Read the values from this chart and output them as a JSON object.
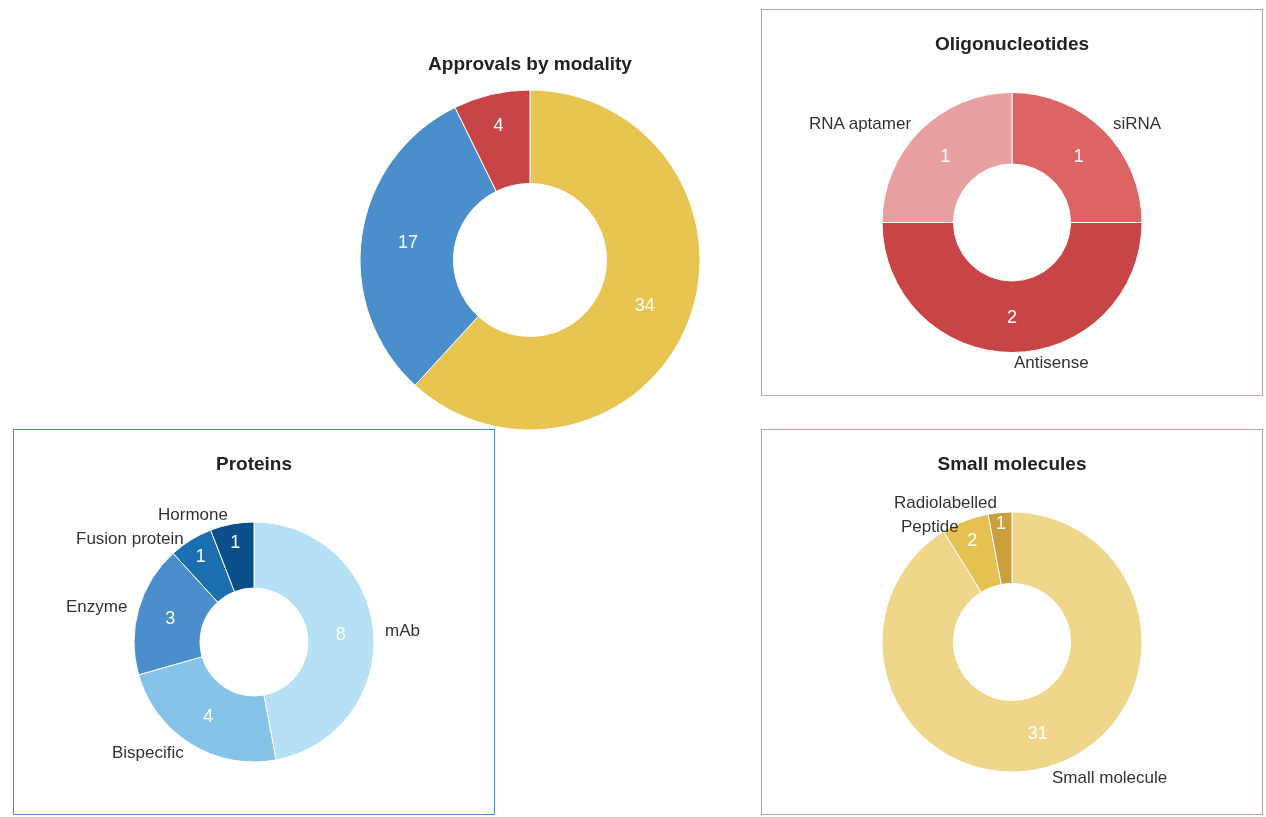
{
  "chart_data": [
    {
      "type": "donut",
      "title": "Approvals by modality",
      "categories": [
        null,
        null,
        null
      ],
      "values": [
        34,
        17,
        4
      ],
      "colors": [
        "#e8c451",
        "#4a8fcc",
        "#c94444"
      ],
      "data_labels": true,
      "legend": false
    },
    {
      "type": "donut",
      "title": "Oligonucleotides",
      "categories": [
        "siRNA",
        "Antisense",
        "RNA aptamer"
      ],
      "values": [
        1,
        2,
        1
      ],
      "colors": [
        "#dc6462",
        "#c94444",
        "#e9a0a0"
      ],
      "data_labels": true,
      "legend": false
    },
    {
      "type": "donut",
      "title": "Proteins",
      "categories": [
        "mAb",
        "Bispecific",
        "Enzyme",
        "Fusion protein",
        "Hormone"
      ],
      "values": [
        8,
        4,
        3,
        1,
        1
      ],
      "colors": [
        "#b5e0f5",
        "#86c3ea",
        "#4a8fcc",
        "#1a6fb0",
        "#0a4f8a"
      ],
      "data_labels": true,
      "legend": false
    },
    {
      "type": "donut",
      "title": "Small molecules",
      "categories": [
        "Small molecule",
        "Peptide",
        "Radiolabelled"
      ],
      "values": [
        31,
        2,
        1
      ],
      "colors": [
        "#f0d68a",
        "#e6c050",
        "#c9a03c"
      ],
      "data_labels": true,
      "legend": false
    }
  ]
}
